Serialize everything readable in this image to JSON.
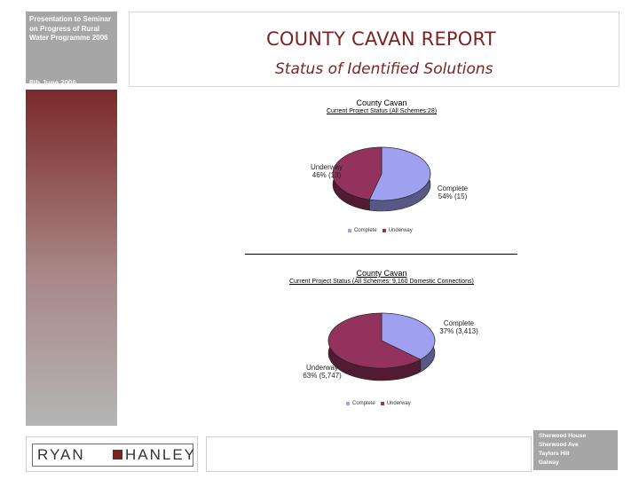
{
  "presentation": {
    "title": "Presentation to Seminar on Progress of Rural Water Programme 2006",
    "date": "8th June 2006"
  },
  "report": {
    "title": "COUNTY CAVAN REPORT",
    "subtitle": "Status of Identified Solutions"
  },
  "logo": {
    "left": "RYAN",
    "right": "HANLEY"
  },
  "address": [
    "Sherwood House",
    "Sherwood Ave",
    "Taylors Hill",
    "Galway"
  ],
  "colors": {
    "complete": "#a0a0f0",
    "underway": "#93325c",
    "accent": "#7b2424"
  },
  "chart_data": [
    {
      "type": "pie",
      "title": "County Cavan",
      "subtitle": "Current Project Status (All Schemes:28)",
      "slices": [
        {
          "name": "Complete",
          "value": 54,
          "label": "Complete\n54% (15)",
          "color": "#a0a0f0"
        },
        {
          "name": "Underway",
          "value": 46,
          "label": "Underway\n46% (13)",
          "color": "#93325c"
        }
      ],
      "legend": [
        "Complete",
        "Underway"
      ],
      "legend_position": "bottom"
    },
    {
      "type": "pie",
      "title": "County Cavan",
      "subtitle": "Current Project Status (All Schemes: 9,160 Domestic Connections)",
      "slices": [
        {
          "name": "Complete",
          "value": 37,
          "label": "Complete\n37% (3,413)",
          "color": "#a0a0f0"
        },
        {
          "name": "Underway",
          "value": 63,
          "label": "Underway\n63% (5,747)",
          "color": "#93325c"
        }
      ],
      "legend": [
        "Complete",
        "Underway"
      ],
      "legend_position": "bottom"
    }
  ]
}
